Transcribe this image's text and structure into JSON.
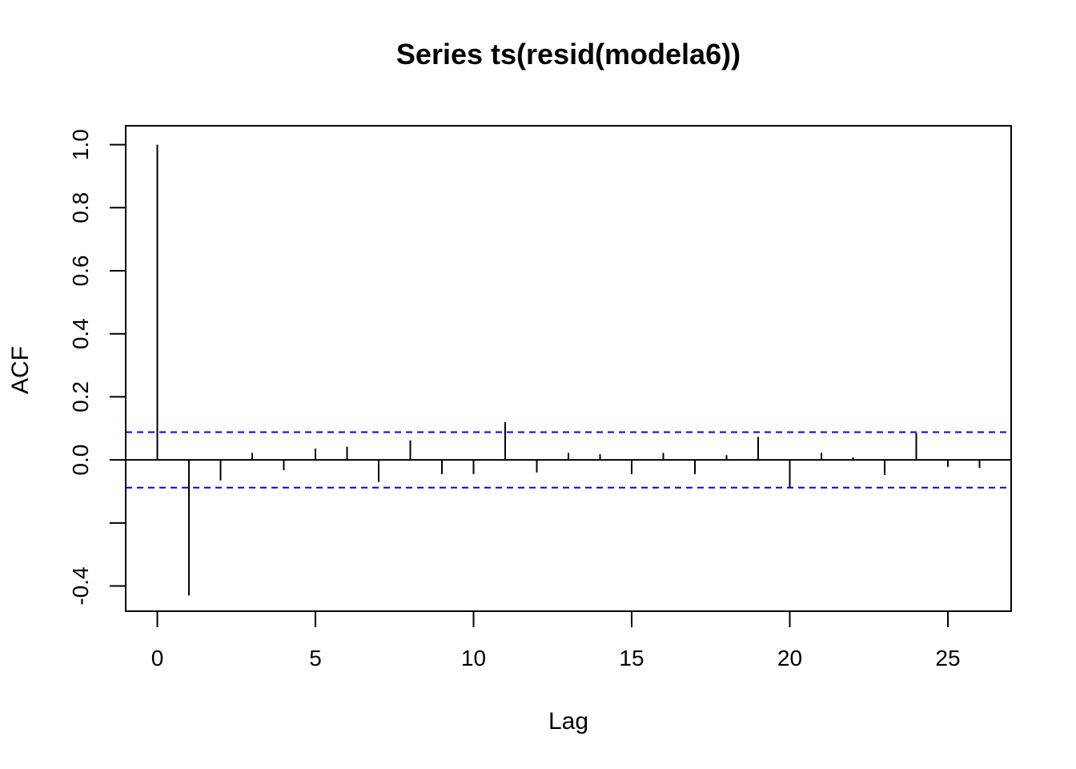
{
  "chart_data": {
    "type": "bar",
    "title": "Series  ts(resid(modela6))",
    "xlabel": "Lag",
    "ylabel": "ACF",
    "xlim": [
      -1,
      27
    ],
    "ylim": [
      -0.48,
      1.06
    ],
    "x_ticks": [
      0,
      5,
      10,
      15,
      20,
      25
    ],
    "x_tick_labels": [
      "0",
      "5",
      "10",
      "15",
      "20",
      "25"
    ],
    "y_ticks": [
      -0.4,
      -0.2,
      0.0,
      0.2,
      0.4,
      0.6,
      0.8,
      1.0
    ],
    "y_tick_labels": [
      "-0.4",
      "",
      "0.0",
      "0.2",
      "0.4",
      "0.6",
      "0.8",
      "1.0"
    ],
    "grid": false,
    "lags": [
      0,
      1,
      2,
      3,
      4,
      5,
      6,
      7,
      8,
      9,
      10,
      11,
      12,
      13,
      14,
      15,
      16,
      17,
      18,
      19,
      20,
      21,
      22,
      23,
      24,
      25,
      26
    ],
    "acf": [
      1.0,
      -0.43,
      -0.065,
      0.022,
      -0.033,
      0.036,
      0.042,
      -0.07,
      0.062,
      -0.045,
      -0.045,
      0.12,
      -0.04,
      0.022,
      0.018,
      -0.045,
      0.022,
      -0.045,
      0.015,
      0.073,
      -0.09,
      0.023,
      0.008,
      -0.048,
      0.085,
      -0.022,
      -0.025
    ],
    "confidence_bounds": [
      0.088,
      -0.088
    ],
    "confidence_color": "#0000ff",
    "spike_color": "#000000"
  }
}
